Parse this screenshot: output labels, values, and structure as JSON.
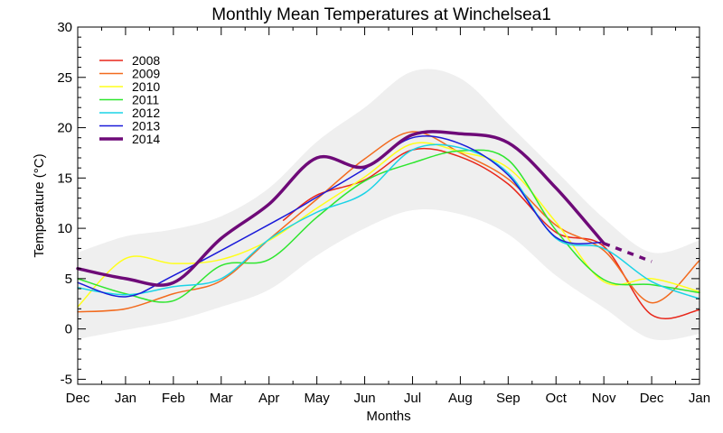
{
  "chart_data": {
    "type": "line",
    "title": "Monthly Mean Temperatures at Winchelsea1",
    "xlabel": "Months",
    "ylabel": "Temperature (°C)",
    "ylim": [
      -5.5,
      30
    ],
    "xlim": [
      0,
      13
    ],
    "x_tick_labels": [
      "Dec",
      "Jan",
      "Feb",
      "Mar",
      "Apr",
      "May",
      "Jun",
      "Jul",
      "Aug",
      "Sep",
      "Oct",
      "Nov",
      "Dec",
      "Jan"
    ],
    "y_ticks": [
      -5,
      0,
      5,
      10,
      15,
      20,
      25,
      30
    ],
    "envelope": {
      "color": "#efefef",
      "x": [
        0,
        1,
        2,
        3,
        4,
        5,
        6,
        7,
        8,
        9,
        10,
        11,
        12,
        13
      ],
      "upper": [
        7.6,
        9.2,
        9.9,
        11.2,
        14.0,
        18.6,
        22.0,
        25.6,
        24.9,
        20.4,
        15.7,
        11.0,
        7.6,
        8.8
      ],
      "lower": [
        -1.0,
        -0.1,
        0.8,
        2.2,
        3.9,
        7.3,
        10.0,
        11.8,
        11.4,
        9.4,
        5.3,
        2.1,
        -1.0,
        -0.5
      ]
    },
    "series": [
      {
        "name": "2008",
        "color": "#e8261a",
        "width": 1.5,
        "x": [
          4.3,
          5,
          6,
          7,
          8,
          9,
          10,
          11,
          12,
          13
        ],
        "y": [
          10.8,
          13.3,
          14.8,
          17.8,
          17.1,
          14.4,
          9.6,
          8.2,
          1.4,
          1.9
        ]
      },
      {
        "name": "2009",
        "color": "#f26b1f",
        "width": 1.5,
        "x": [
          0,
          1,
          2,
          3,
          4,
          5,
          6,
          7,
          8,
          9,
          10,
          11,
          12,
          13
        ],
        "y": [
          1.7,
          2.0,
          3.5,
          4.8,
          8.9,
          12.9,
          16.9,
          19.6,
          17.5,
          14.9,
          10.3,
          7.8,
          2.6,
          6.8
        ]
      },
      {
        "name": "2010",
        "color": "#ffff1a",
        "width": 1.5,
        "x": [
          0,
          1,
          2,
          3,
          4,
          5,
          6,
          7,
          8,
          9,
          10,
          11,
          12,
          13
        ],
        "y": [
          2.2,
          7.0,
          6.5,
          6.9,
          8.8,
          12.0,
          15.1,
          18.4,
          17.6,
          16.0,
          10.6,
          4.7,
          5.0,
          3.7
        ]
      },
      {
        "name": "2011",
        "color": "#2ee62e",
        "width": 1.5,
        "x": [
          0,
          1,
          2,
          3,
          4,
          5,
          6,
          7,
          8,
          9,
          10,
          11,
          12,
          13
        ],
        "y": [
          5.0,
          3.5,
          2.8,
          6.3,
          6.9,
          11.1,
          14.7,
          16.5,
          17.7,
          16.8,
          9.8,
          4.9,
          4.4,
          3.6
        ]
      },
      {
        "name": "2012",
        "color": "#1ad3e6",
        "width": 1.5,
        "x": [
          0,
          1,
          2,
          3,
          4,
          5,
          6,
          7,
          8,
          9,
          10,
          11,
          12,
          13
        ],
        "y": [
          4.1,
          3.4,
          4.2,
          5.0,
          8.9,
          11.6,
          13.5,
          17.8,
          18.0,
          15.5,
          9.0,
          8.0,
          4.7,
          3.0
        ]
      },
      {
        "name": "2013",
        "color": "#1a1ad9",
        "width": 1.5,
        "x": [
          0,
          1,
          2,
          4.2,
          5,
          6,
          7,
          8,
          9,
          10,
          11
        ],
        "y": [
          4.6,
          3.2,
          5.3,
          10.9,
          13.1,
          15.9,
          19.0,
          18.4,
          15.3,
          9.1,
          8.6
        ]
      },
      {
        "name": "2014",
        "color": "#6e0a78",
        "width": 3.5,
        "x": [
          0,
          1,
          2,
          3,
          4,
          5,
          6,
          7,
          8,
          9,
          10,
          11
        ],
        "y": [
          6.0,
          5.0,
          4.6,
          9.0,
          12.4,
          17.0,
          16.1,
          19.3,
          19.4,
          18.5,
          14.0,
          8.5
        ],
        "projection": {
          "x": [
            11,
            12
          ],
          "y": [
            8.5,
            6.7
          ]
        }
      }
    ],
    "legend": {
      "position": "top-left"
    }
  }
}
